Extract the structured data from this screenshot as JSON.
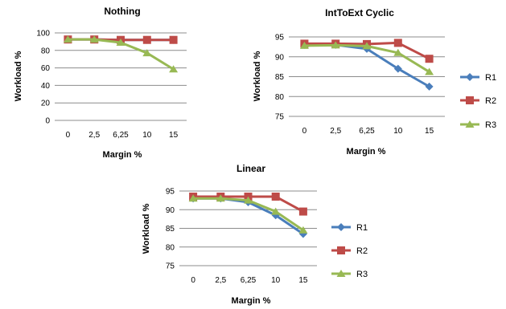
{
  "colors": {
    "R1": "#4a7ebb",
    "R2": "#be4b48",
    "R3": "#98b954"
  },
  "chart_data": [
    {
      "type": "line",
      "title": "Nothing",
      "xlabel": "Margin %",
      "ylabel": "Workload %",
      "categories": [
        "0",
        "2,5",
        "6,25",
        "10",
        "15"
      ],
      "ylim": [
        0,
        100
      ],
      "yticks": [
        0,
        20,
        40,
        60,
        80,
        100
      ],
      "grid": true,
      "legend": "none",
      "series": [
        {
          "name": "R1",
          "values": [
            92.5,
            92.5,
            92.0,
            92.0,
            92.0
          ]
        },
        {
          "name": "R2",
          "values": [
            92.5,
            92.5,
            92.0,
            92.0,
            92.0
          ]
        },
        {
          "name": "R3",
          "values": [
            92.5,
            92.5,
            89.0,
            77.0,
            58.5
          ]
        }
      ]
    },
    {
      "type": "line",
      "title": "IntToExt Cyclic",
      "xlabel": "Margin %",
      "ylabel": "Workload %",
      "categories": [
        "0",
        "2,5",
        "6,25",
        "10",
        "15"
      ],
      "ylim": [
        75,
        95
      ],
      "yticks": [
        75,
        80,
        85,
        90,
        95
      ],
      "grid": true,
      "legend": "right",
      "series": [
        {
          "name": "R1",
          "values": [
            93.0,
            93.0,
            92.0,
            87.0,
            82.5
          ]
        },
        {
          "name": "R2",
          "values": [
            93.3,
            93.3,
            93.2,
            93.5,
            89.5
          ]
        },
        {
          "name": "R3",
          "values": [
            92.8,
            92.9,
            92.7,
            91.0,
            86.2
          ]
        }
      ]
    },
    {
      "type": "line",
      "title": "Linear",
      "xlabel": "Margin %",
      "ylabel": "Workload %",
      "categories": [
        "0",
        "2,5",
        "6,25",
        "10",
        "15"
      ],
      "ylim": [
        75,
        95
      ],
      "yticks": [
        75,
        80,
        85,
        90,
        95
      ],
      "grid": true,
      "legend": "right",
      "series": [
        {
          "name": "R1",
          "values": [
            93.0,
            93.0,
            92.0,
            88.5,
            83.5
          ]
        },
        {
          "name": "R2",
          "values": [
            93.5,
            93.5,
            93.5,
            93.5,
            89.5
          ]
        },
        {
          "name": "R3",
          "values": [
            93.0,
            93.0,
            92.5,
            89.5,
            84.5
          ]
        }
      ]
    }
  ]
}
